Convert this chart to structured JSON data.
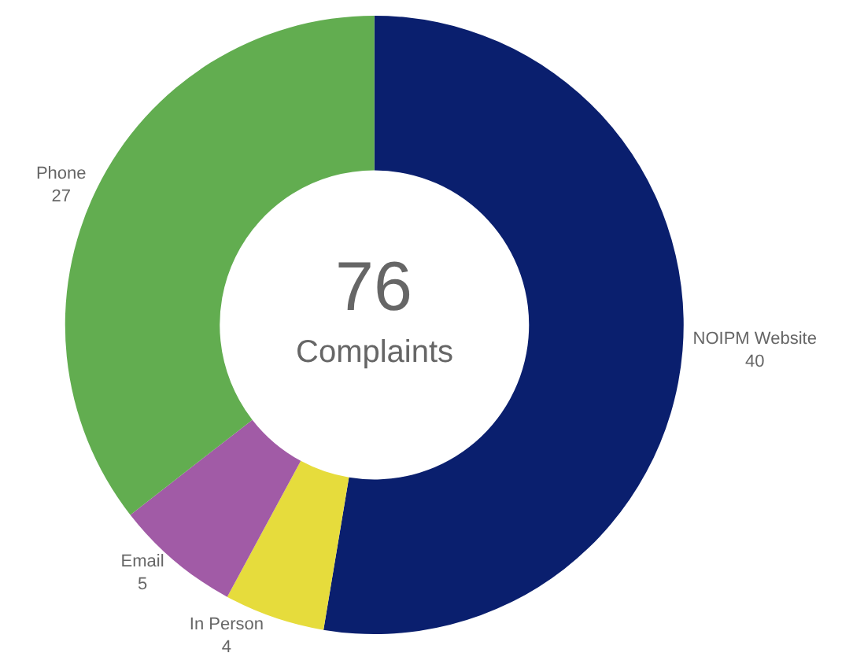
{
  "chart_data": {
    "type": "donut",
    "categories": [
      "NOIPM Website",
      "In Person",
      "Email",
      "Phone"
    ],
    "values": [
      40,
      4,
      5,
      27
    ],
    "colors": [
      "#0a1f6e",
      "#e6dc3c",
      "#a15ba6",
      "#62ad50"
    ],
    "data_labels": true,
    "legend": false,
    "annotations": [
      "76",
      "Complaints"
    ]
  }
}
